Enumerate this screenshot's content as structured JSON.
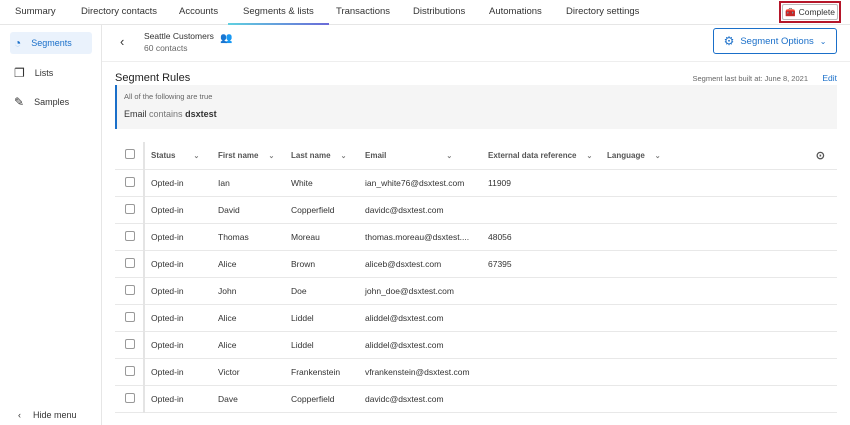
{
  "topnav": {
    "tabs": [
      "Summary",
      "Directory contacts",
      "Accounts",
      "Segments & lists",
      "Transactions",
      "Distributions",
      "Automations",
      "Directory settings"
    ],
    "active": "Segments & lists",
    "complete_label": "Complete"
  },
  "sidebar": {
    "items": [
      {
        "label": "Segments",
        "icon": "segments-icon"
      },
      {
        "label": "Lists",
        "icon": "lists-icon"
      },
      {
        "label": "Samples",
        "icon": "pipette-icon"
      }
    ],
    "hide_menu": "Hide menu"
  },
  "header": {
    "title": "Seattle Customers",
    "subtitle": "60 contacts",
    "segment_options": "Segment Options"
  },
  "rules": {
    "title": "Segment Rules",
    "last_built": "Segment last built at: June 8, 2021",
    "edit": "Edit",
    "condition_intro": "All of the following are true",
    "field": "Email",
    "operator": "contains",
    "value": "dsxtest"
  },
  "table": {
    "columns": [
      "Status",
      "First name",
      "Last name",
      "Email",
      "External data reference",
      "Language"
    ],
    "rows": [
      [
        "Opted-in",
        "Ian",
        "White",
        "ian_white76@dsxtest.com",
        "11909",
        ""
      ],
      [
        "Opted-in",
        "David",
        "Copperfield",
        "davidc@dsxtest.com",
        "",
        ""
      ],
      [
        "Opted-in",
        "Thomas",
        "Moreau",
        "thomas.moreau@dsxtest....",
        "48056",
        ""
      ],
      [
        "Opted-in",
        "Alice",
        "Brown",
        "aliceb@dsxtest.com",
        "67395",
        ""
      ],
      [
        "Opted-in",
        "John",
        "Doe",
        "john_doe@dsxtest.com",
        "",
        ""
      ],
      [
        "Opted-in",
        "Alice",
        "Liddel",
        "aliddel@dsxtest.com",
        "",
        ""
      ],
      [
        "Opted-in",
        "Alice",
        "Liddel",
        "aliddel@dsxtest.com",
        "",
        ""
      ],
      [
        "Opted-in",
        "Victor",
        "Frankenstein",
        "vfrankenstein@dsxtest.com",
        "",
        ""
      ],
      [
        "Opted-in",
        "Dave",
        "Copperfield",
        "davidc@dsxtest.com",
        "",
        ""
      ]
    ]
  },
  "colors": {
    "accent": "#1a6fc9",
    "highlight": "#b5162a"
  }
}
